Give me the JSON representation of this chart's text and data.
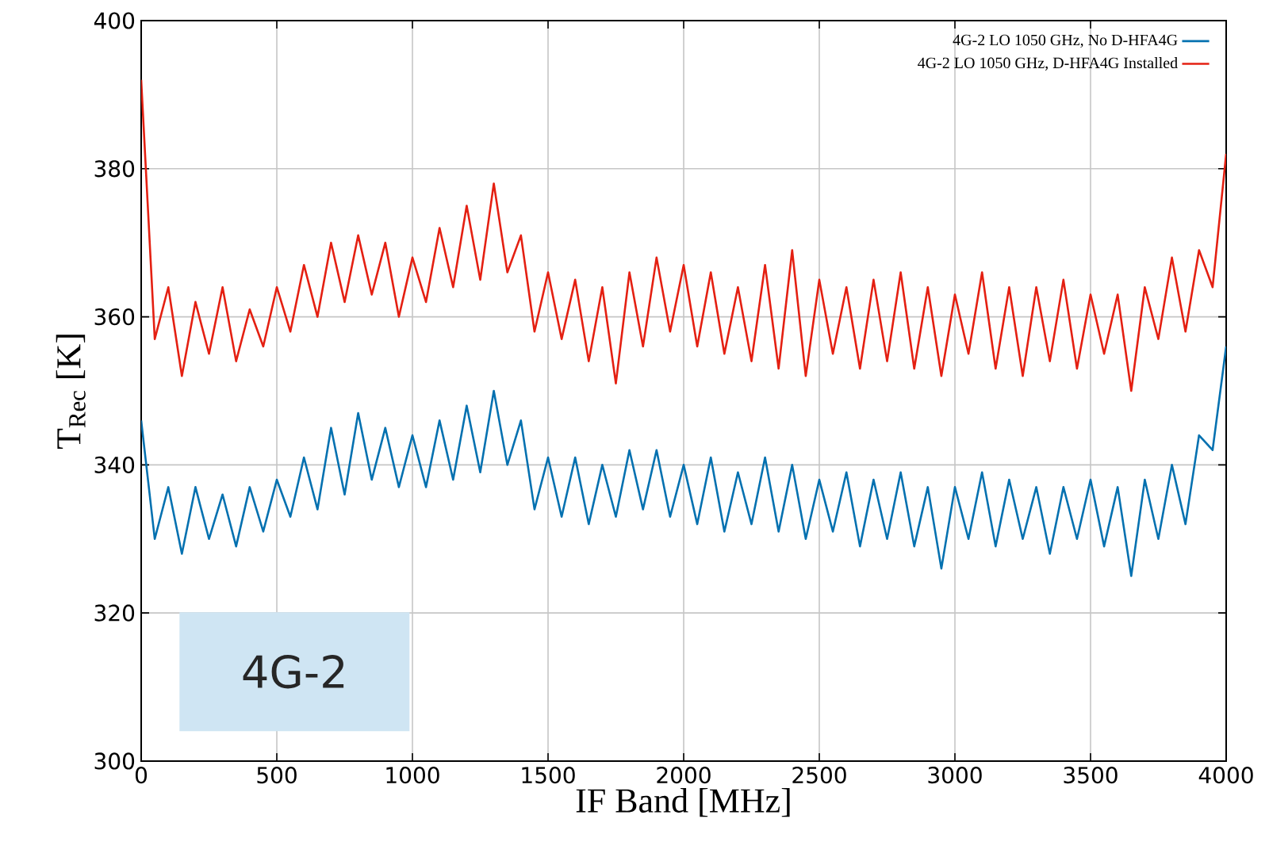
{
  "chart_data": {
    "type": "line",
    "xlabel": "IF Band [MHz]",
    "ylabel": "T$_{Rec}$ [K]",
    "x": [
      0,
      50,
      100,
      150,
      200,
      250,
      300,
      350,
      400,
      450,
      500,
      550,
      600,
      650,
      700,
      750,
      800,
      850,
      900,
      950,
      1000,
      1050,
      1100,
      1150,
      1200,
      1250,
      1300,
      1350,
      1400,
      1450,
      1500,
      1550,
      1600,
      1650,
      1700,
      1750,
      1800,
      1850,
      1900,
      1950,
      2000,
      2050,
      2100,
      2150,
      2200,
      2250,
      2300,
      2350,
      2400,
      2450,
      2500,
      2550,
      2600,
      2650,
      2700,
      2750,
      2800,
      2850,
      2900,
      2950,
      3000,
      3050,
      3100,
      3150,
      3200,
      3250,
      3300,
      3350,
      3400,
      3450,
      3500,
      3550,
      3600,
      3650,
      3700,
      3750,
      3800,
      3850,
      3900,
      3950,
      4000
    ],
    "series": [
      {
        "name": "4G-2 LO 1050 GHz, No D-HFA4G",
        "color": "#0571b0",
        "values": [
          346,
          330,
          337,
          328,
          337,
          330,
          336,
          329,
          337,
          331,
          338,
          333,
          341,
          334,
          345,
          336,
          347,
          338,
          345,
          337,
          344,
          337,
          346,
          338,
          348,
          339,
          350,
          340,
          346,
          334,
          341,
          333,
          341,
          332,
          340,
          333,
          342,
          334,
          342,
          333,
          340,
          332,
          341,
          331,
          339,
          332,
          341,
          331,
          340,
          330,
          338,
          331,
          339,
          329,
          338,
          330,
          339,
          329,
          337,
          326,
          337,
          330,
          339,
          329,
          338,
          330,
          337,
          328,
          337,
          330,
          338,
          329,
          337,
          325,
          338,
          330,
          340,
          332,
          344,
          342,
          356
        ]
      },
      {
        "name": "4G-2 LO 1050 GHz, D-HFA4G Installed",
        "color": "#e42012",
        "values": [
          392,
          357,
          364,
          352,
          362,
          355,
          364,
          354,
          361,
          356,
          364,
          358,
          367,
          360,
          370,
          362,
          371,
          363,
          370,
          360,
          368,
          362,
          372,
          364,
          375,
          365,
          378,
          366,
          371,
          358,
          366,
          357,
          365,
          354,
          364,
          351,
          366,
          356,
          368,
          358,
          367,
          356,
          366,
          355,
          364,
          354,
          367,
          353,
          369,
          352,
          365,
          355,
          364,
          353,
          365,
          354,
          366,
          353,
          364,
          352,
          363,
          355,
          366,
          353,
          364,
          352,
          364,
          354,
          365,
          353,
          363,
          355,
          363,
          350,
          364,
          357,
          368,
          358,
          369,
          364,
          382
        ]
      }
    ],
    "xlim": [
      0,
      4000
    ],
    "ylim": [
      300,
      400
    ],
    "xticks": [
      0,
      500,
      1000,
      1500,
      2000,
      2500,
      3000,
      3500,
      4000
    ],
    "yticks": [
      300,
      320,
      340,
      360,
      380,
      400
    ],
    "grid": true,
    "legend": "top right",
    "annotations": [
      "4G-2"
    ]
  }
}
